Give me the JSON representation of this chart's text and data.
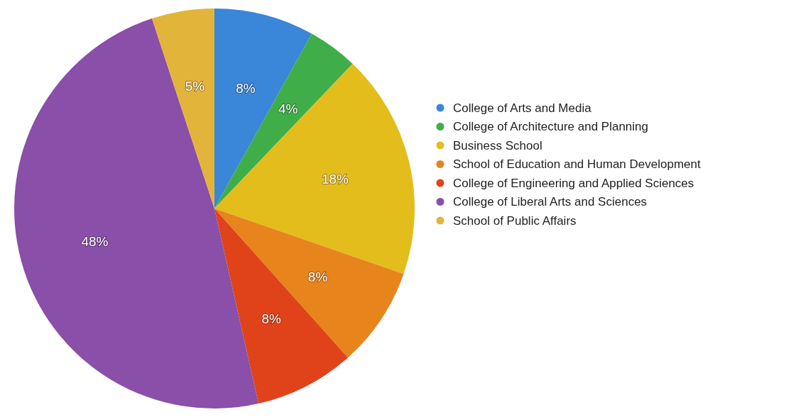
{
  "chart_data": {
    "type": "pie",
    "categories": [
      "College of Arts and Media",
      "College of Architecture and Planning",
      "Business School",
      "School of Education and Human Development",
      "College of Engineering and Applied Sciences",
      "College of Liberal Arts and Sciences",
      "School of Public Affairs"
    ],
    "values": [
      8,
      4,
      18,
      8,
      8,
      48,
      5
    ],
    "colors": [
      "#3a86d8",
      "#3fae49",
      "#e3bd1c",
      "#e8841c",
      "#e0431a",
      "#8a4fa8",
      "#e3b43a"
    ],
    "value_labels": [
      "8%",
      "4%",
      "18%",
      "8%",
      "8%",
      "48%",
      "5%"
    ],
    "legend": "right"
  }
}
